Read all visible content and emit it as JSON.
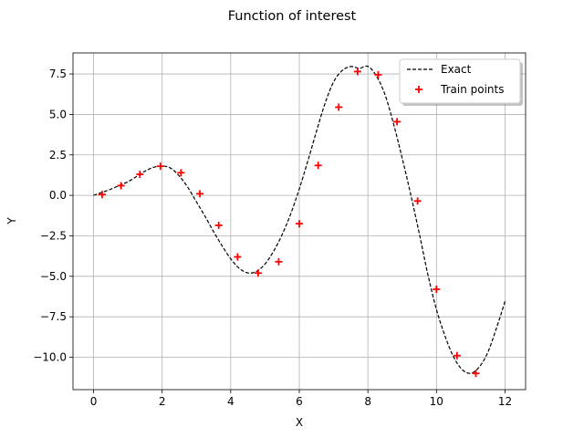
{
  "chart_data": {
    "type": "line",
    "title": "Function of interest",
    "xlabel": "X",
    "ylabel": "Y",
    "xlim": [
      -0.6,
      12.6
    ],
    "ylim": [
      -12.0,
      8.8
    ],
    "xticks": [
      0,
      2,
      4,
      6,
      8,
      10,
      12
    ],
    "xtick_labels": [
      "0",
      "2",
      "4",
      "6",
      "8",
      "10",
      "12"
    ],
    "yticks": [
      -10.0,
      -7.5,
      -5.0,
      -2.5,
      0.0,
      2.5,
      5.0,
      7.5
    ],
    "ytick_labels": [
      "−10.0",
      "−7.5",
      "−5.0",
      "−2.5",
      "0.0",
      "2.5",
      "5.0",
      "7.5"
    ],
    "grid": true,
    "legend_position": "top-right",
    "colors": {
      "exact": "#000000",
      "train": "#ff0000"
    },
    "series": [
      {
        "name": "Exact",
        "style": "dashed",
        "x": [
          0.0,
          0.25,
          0.5,
          0.75,
          1.0,
          1.25,
          1.5,
          1.75,
          2.0,
          2.25,
          2.5,
          2.75,
          3.0,
          3.25,
          3.5,
          3.75,
          4.0,
          4.25,
          4.5,
          4.75,
          5.0,
          5.25,
          5.5,
          5.75,
          6.0,
          6.25,
          6.5,
          6.75,
          7.0,
          7.25,
          7.5,
          7.75,
          8.0,
          8.25,
          8.5,
          8.75,
          9.0,
          9.25,
          9.5,
          9.75,
          10.0,
          10.25,
          10.5,
          10.75,
          11.0,
          11.25,
          11.5,
          11.75,
          12.0
        ],
        "y": [
          0.0,
          0.19,
          0.38,
          0.61,
          0.84,
          1.16,
          1.5,
          1.73,
          1.82,
          1.68,
          1.2,
          0.49,
          -0.4,
          -1.29,
          -2.24,
          -3.12,
          -3.92,
          -4.51,
          -4.79,
          -4.7,
          -4.24,
          -3.45,
          -2.42,
          -1.14,
          0.4,
          2.13,
          3.95,
          5.68,
          7.01,
          7.71,
          7.96,
          7.85,
          7.97,
          7.37,
          6.22,
          4.41,
          2.31,
          0.05,
          -2.36,
          -4.89,
          -7.05,
          -8.69,
          -9.98,
          -10.76,
          -10.99,
          -10.6,
          -9.69,
          -8.2,
          -6.55
        ]
      },
      {
        "name": "Train points",
        "style": "markers",
        "x": [
          0.25,
          0.8,
          1.35,
          1.95,
          2.55,
          3.1,
          3.65,
          4.2,
          4.8,
          5.4,
          6.0,
          6.55,
          7.15,
          7.7,
          8.3,
          8.85,
          9.45,
          10.0,
          10.6,
          11.15
        ],
        "y": [
          0.05,
          0.6,
          1.3,
          1.8,
          1.4,
          0.1,
          -1.85,
          -3.8,
          -4.8,
          -4.1,
          -1.75,
          1.85,
          5.45,
          7.65,
          7.45,
          4.55,
          -0.35,
          -5.8,
          -9.9,
          -11.0
        ]
      }
    ]
  }
}
